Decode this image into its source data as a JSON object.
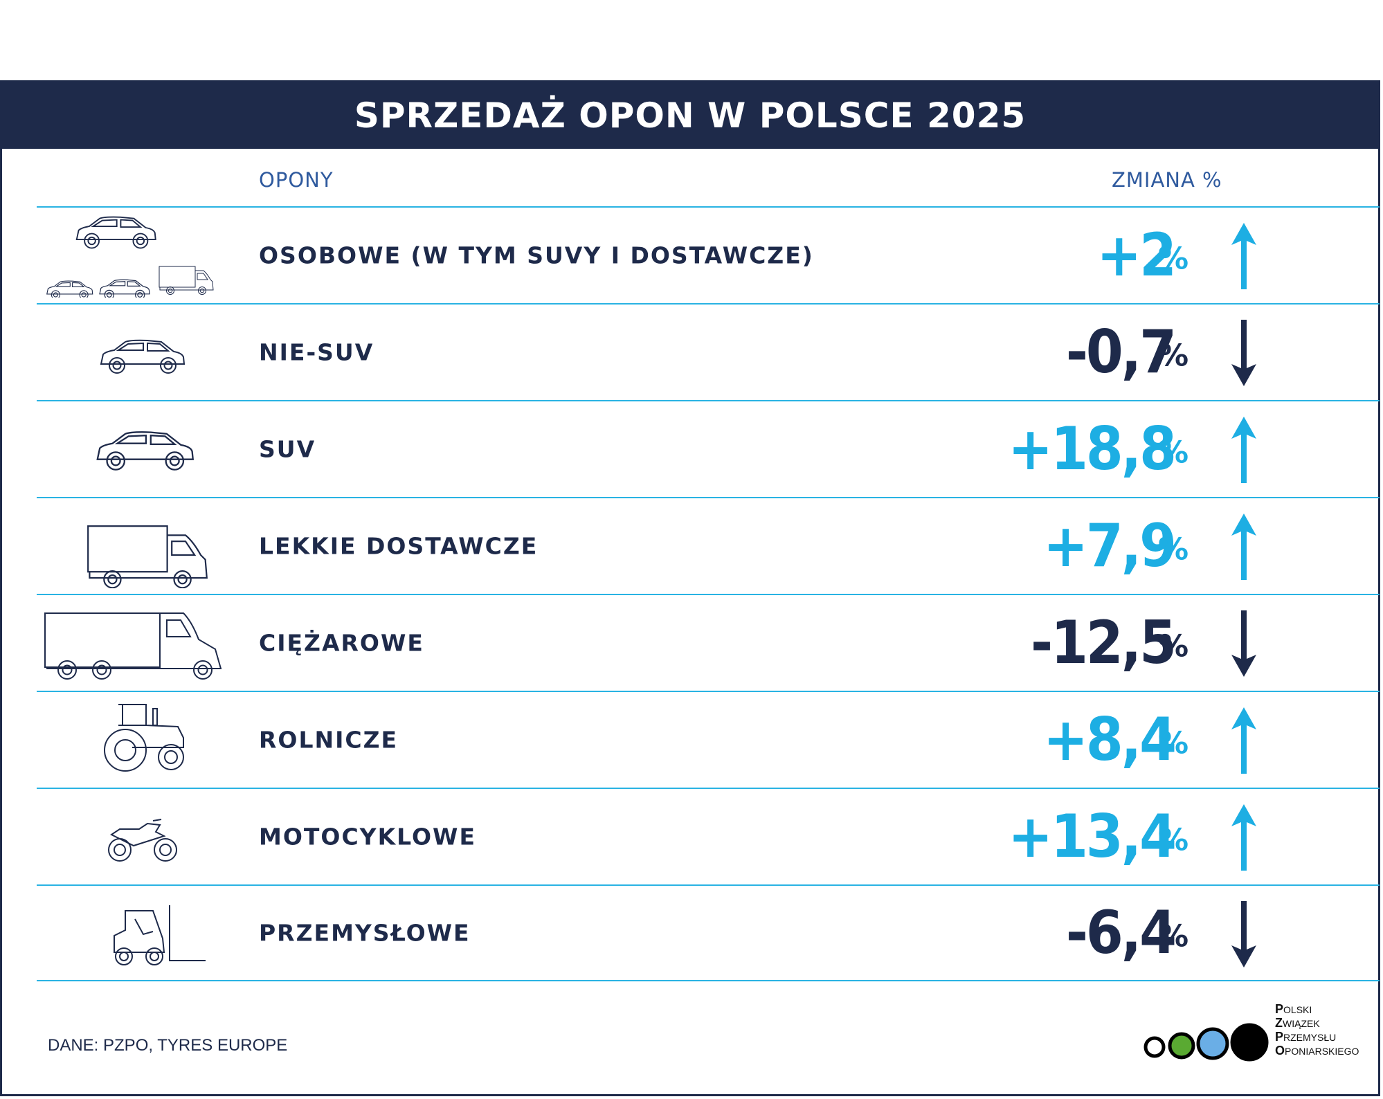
{
  "header": {
    "title": "SPRZEDAŻ OPON W POLSCE 2025"
  },
  "columns": {
    "left": "OPONY",
    "right": "ZMIANA %"
  },
  "rows": [
    {
      "label": "OSOBOWE (W TYM SUVY I DOSTAWCZE)",
      "value": "+2",
      "unit": "%",
      "trend": "up",
      "icon": "cars-group-icon"
    },
    {
      "label": "NIE-SUV",
      "value": "-0,7",
      "unit": "%",
      "trend": "down",
      "icon": "car-icon"
    },
    {
      "label": "SUV",
      "value": "+18,8",
      "unit": "%",
      "trend": "up",
      "icon": "suv-icon"
    },
    {
      "label": "LEKKIE DOSTAWCZE",
      "value": "+7,9",
      "unit": "%",
      "trend": "up",
      "icon": "van-icon"
    },
    {
      "label": "CIĘŻAROWE",
      "value": "-12,5",
      "unit": "%",
      "trend": "down",
      "icon": "truck-icon"
    },
    {
      "label": "ROLNICZE",
      "value": "+8,4",
      "unit": "%",
      "trend": "up",
      "icon": "tractor-icon"
    },
    {
      "label": "MOTOCYKLOWE",
      "value": "+13,4",
      "unit": "%",
      "trend": "up",
      "icon": "motorcycle-icon"
    },
    {
      "label": "PRZEMYSŁOWE",
      "value": "-6,4",
      "unit": "%",
      "trend": "down",
      "icon": "forklift-icon"
    }
  ],
  "footer": {
    "source": "DANE: PZPO, TYRES EUROPE"
  },
  "logo": {
    "lines": [
      {
        "initial": "P",
        "rest": "OLSKI"
      },
      {
        "initial": "Z",
        "rest": "WIĄZEK"
      },
      {
        "initial": "P",
        "rest": "RZEMYSŁU"
      },
      {
        "initial": "O",
        "rest": "PONIARSKIEGO"
      }
    ],
    "circle_colors": [
      "#ffffff",
      "#5aaa32",
      "#6aaee6",
      "#000000"
    ]
  },
  "colors": {
    "navy": "#1e2a4a",
    "cyan": "#1daee3",
    "line": "#29b3e3",
    "column_head": "#2f5a9e"
  },
  "chart_data": {
    "type": "table",
    "title": "SPRZEDAŻ OPON W POLSCE 2025",
    "categories": [
      "OSOBOWE (W TYM SUVY I DOSTAWCZE)",
      "NIE-SUV",
      "SUV",
      "LEKKIE DOSTAWCZE",
      "CIĘŻAROWE",
      "ROLNICZE",
      "MOTOCYKLOWE",
      "PRZEMYSŁOWE"
    ],
    "series": [
      {
        "name": "ZMIANA %",
        "values": [
          2,
          -0.7,
          18.8,
          7.9,
          -12.5,
          8.4,
          13.4,
          -6.4
        ]
      }
    ]
  }
}
